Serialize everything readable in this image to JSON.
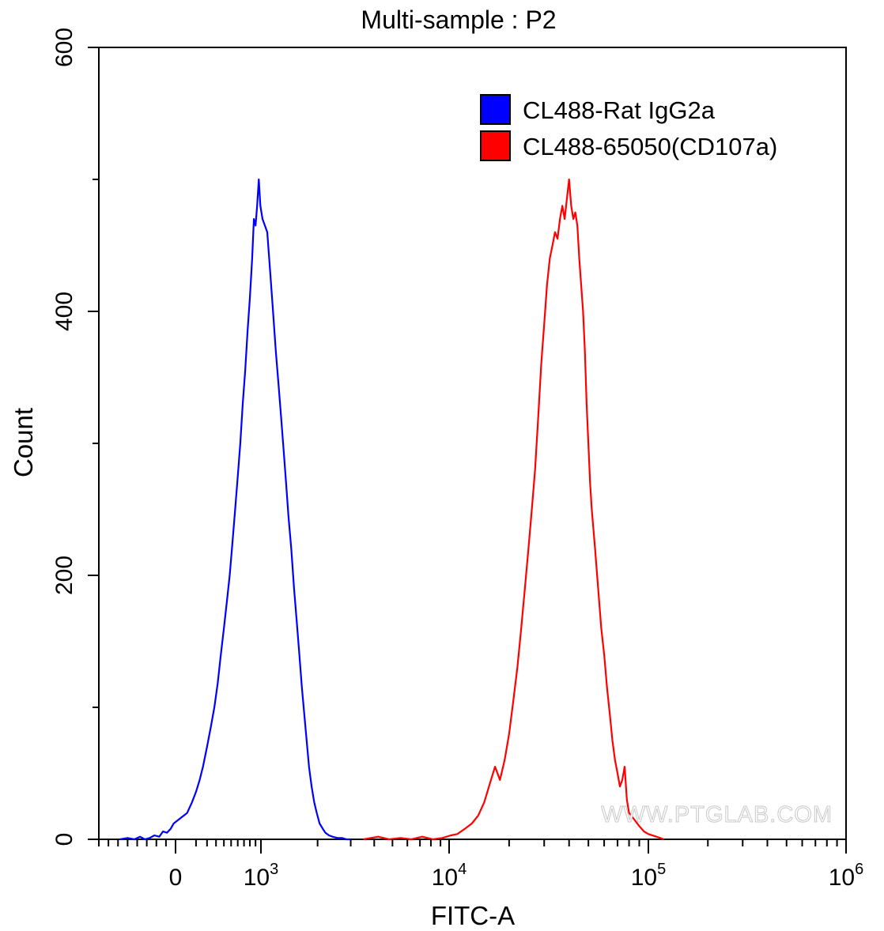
{
  "chart_data": {
    "type": "line",
    "title": "Multi-sample : P2",
    "xlabel": "FITC-A",
    "ylabel": "Count",
    "xscale": "biexponential (linear near 0, log above 10^3)",
    "xlim": [
      -800,
      1000000
    ],
    "ylim": [
      0,
      600
    ],
    "grid": false,
    "legend_position": "top-right",
    "x_ticks": [
      {
        "value": 0,
        "base": "0",
        "exp": ""
      },
      {
        "value": 1000,
        "base": "10",
        "exp": "3"
      },
      {
        "value": 10000,
        "base": "10",
        "exp": "4"
      },
      {
        "value": 100000,
        "base": "10",
        "exp": "5"
      },
      {
        "value": 1000000,
        "base": "10",
        "exp": "6"
      }
    ],
    "y_ticks": [
      "0",
      "200",
      "400",
      "600"
    ],
    "watermark": "WWW.PTGLAB.COM",
    "series": [
      {
        "name": "CL488-Rat IgG2a",
        "color": "#0000ff",
        "x": [
          -580,
          -500,
          -430,
          -370,
          -320,
          -270,
          -220,
          -170,
          -130,
          -90,
          -50,
          -20,
          10,
          40,
          70,
          100,
          130,
          160,
          200,
          240,
          280,
          320,
          360,
          400,
          440,
          480,
          520,
          560,
          600,
          640,
          680,
          720,
          760,
          800,
          840,
          870,
          900,
          930,
          960,
          990,
          1020,
          1050,
          1080,
          1120,
          1160,
          1200,
          1240,
          1280,
          1320,
          1360,
          1400,
          1450,
          1500,
          1550,
          1600,
          1650,
          1700,
          1750,
          1800,
          1860,
          1920,
          1980,
          2050,
          2130,
          2200,
          2300,
          2400,
          2550,
          2700,
          2850,
          3000
        ],
        "y": [
          0,
          1,
          0,
          2,
          0,
          1,
          3,
          2,
          6,
          5,
          8,
          12,
          16,
          20,
          28,
          36,
          45,
          55,
          70,
          85,
          100,
          118,
          140,
          160,
          180,
          200,
          225,
          250,
          275,
          300,
          330,
          355,
          385,
          410,
          440,
          470,
          465,
          480,
          500,
          480,
          470,
          465,
          460,
          430,
          400,
          370,
          345,
          320,
          295,
          270,
          245,
          220,
          190,
          165,
          140,
          115,
          95,
          75,
          55,
          40,
          28,
          20,
          12,
          8,
          5,
          3,
          2,
          1,
          1,
          0,
          0
        ]
      },
      {
        "name": "CL488-65050(CD107a)",
        "color": "#ff0000",
        "x": [
          3500,
          4200,
          4800,
          5500,
          6300,
          7200,
          8200,
          9200,
          10200,
          11000,
          12000,
          13000,
          14000,
          15000,
          16000,
          17000,
          18000,
          19000,
          20000,
          21000,
          22000,
          23000,
          24000,
          25000,
          26000,
          27000,
          28000,
          29000,
          30000,
          31000,
          32000,
          33000,
          34000,
          35000,
          36000,
          37000,
          38000,
          39000,
          40000,
          41000,
          42000,
          43000,
          44000,
          45000,
          46000,
          47000,
          48000,
          49000,
          50000,
          51000,
          52000,
          54000,
          56000,
          58000,
          60000,
          62000,
          64000,
          66000,
          68000,
          70000,
          72000,
          74000,
          76000,
          78000,
          80000,
          85000,
          90000,
          95000,
          100000,
          110000,
          120000
        ],
        "y": [
          0,
          2,
          0,
          1,
          0,
          2,
          0,
          1,
          3,
          4,
          8,
          12,
          18,
          28,
          42,
          55,
          45,
          60,
          80,
          105,
          130,
          160,
          190,
          220,
          250,
          280,
          320,
          360,
          390,
          420,
          440,
          450,
          460,
          455,
          470,
          480,
          470,
          485,
          500,
          480,
          470,
          475,
          465,
          440,
          420,
          400,
          370,
          330,
          300,
          270,
          250,
          220,
          190,
          160,
          140,
          115,
          95,
          75,
          60,
          50,
          40,
          45,
          55,
          30,
          20,
          15,
          10,
          6,
          4,
          2,
          0
        ]
      }
    ]
  }
}
